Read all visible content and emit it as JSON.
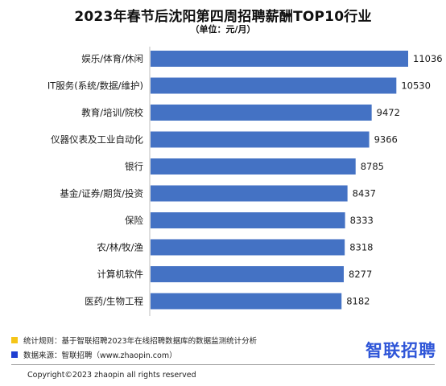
{
  "chart_data": {
    "type": "bar",
    "orientation": "horizontal",
    "title": "2023年春节后沈阳第四周招聘薪酬TOP10行业",
    "subtitle": "（单位：元/月）",
    "categories": [
      "娱乐/体育/休闲",
      "IT服务(系统/数据/维护)",
      "教育/培训/院校",
      "仪器仪表及工业自动化",
      "银行",
      "基金/证券/期货/投资",
      "保险",
      "农/林/牧/渔",
      "计算机软件",
      "医药/生物工程"
    ],
    "values": [
      11036,
      10530,
      9472,
      9366,
      8785,
      8437,
      8333,
      8318,
      8277,
      8182
    ],
    "xlim": [
      0,
      11036
    ],
    "grid": false,
    "bar_color": "#4472c4"
  },
  "footer": {
    "rule_note": "统计规则：基于智联招聘2023年在线招聘数据库的数据监测统计分析",
    "rule_color": "#f5c518",
    "source_note": "数据来源：智联招聘（www.zhaopin.com）",
    "source_color": "#1f3fd1",
    "brand": "智联招聘",
    "copyright": "Copyright©2023 zhaopin all rights reserved"
  }
}
